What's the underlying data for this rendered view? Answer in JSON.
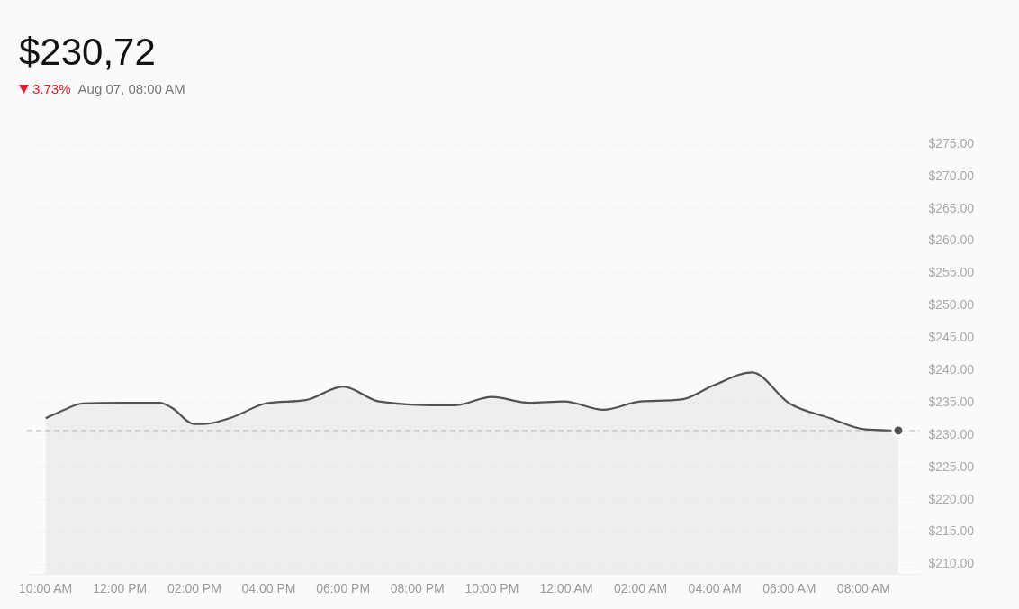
{
  "chart_data": {
    "type": "area",
    "title": "$230,72",
    "subtitle": "3.73%",
    "annotations": [
      "Aug 07, 08:00 AM"
    ],
    "xlim": [
      "--08-06T09:30",
      "--08-07T09:30"
    ],
    "xticks": [
      {
        "value": "--08-06T10:00",
        "label": "10:00 AM"
      },
      {
        "value": "--08-06T12:00",
        "label": "12:00 PM"
      },
      {
        "value": "--08-06T14:00",
        "label": "02:00 PM"
      },
      {
        "value": "--08-06T16:00",
        "label": "04:00 PM"
      },
      {
        "value": "--08-06T18:00",
        "label": "06:00 PM"
      },
      {
        "value": "--08-06T20:00",
        "label": "08:00 PM"
      },
      {
        "value": "--08-06T22:00",
        "label": "10:00 PM"
      },
      {
        "value": "--08-07T00:00",
        "label": "12:00 AM"
      },
      {
        "value": "--08-07T02:00",
        "label": "02:00 AM"
      },
      {
        "value": "--08-07T04:00",
        "label": "04:00 AM"
      },
      {
        "value": "--08-07T06:00",
        "label": "06:00 AM"
      },
      {
        "value": "--08-07T08:00",
        "label": "08:00 AM"
      }
    ],
    "ylim": [
      208.5,
      275
    ],
    "yticks": [
      {
        "value": 210,
        "label": "$210.00"
      },
      {
        "value": 215,
        "label": "$215.00"
      },
      {
        "value": 220,
        "label": "$220.00"
      },
      {
        "value": 225,
        "label": "$225.00"
      },
      {
        "value": 230,
        "label": "$230.00"
      },
      {
        "value": 235,
        "label": "$235.00"
      },
      {
        "value": 240,
        "label": "$240.00"
      },
      {
        "value": 245,
        "label": "$245.00"
      },
      {
        "value": 250,
        "label": "$250.00"
      },
      {
        "value": 255,
        "label": "$255.00"
      },
      {
        "value": 260,
        "label": "$260.00"
      },
      {
        "value": 265,
        "label": "$265.00"
      },
      {
        "value": 270,
        "label": "$270.00"
      },
      {
        "value": 275,
        "label": "$275.00"
      }
    ],
    "grid": "y",
    "legend": false,
    "ref_lines": [
      {
        "axis": "y",
        "value": 230.7,
        "color": "#bbbbbb",
        "line_style": "dashed"
      }
    ],
    "series": [
      {
        "color": "#555150",
        "x": [
          "--08-06T10:00",
          "--08-06T10:30",
          "--08-06T11:00",
          "--08-06T12:03",
          "--08-06T13:04",
          "--08-06T13:24",
          "--08-06T14:00",
          "--08-06T14:15",
          "--08-06T15:00",
          "--08-06T15:56",
          "--08-06T17:00",
          "--08-06T18:00",
          "--08-06T18:58",
          "--08-06T21:00",
          "--08-06T22:00",
          "--08-06T23:00",
          "--08-06T23:57",
          "--08-07T01:00",
          "--08-07T02:00",
          "--08-07T03:06",
          "--08-07T03:58",
          "--08-07T05:00",
          "--08-07T06:00",
          "--08-07T07:06",
          "--08-07T08:00",
          "--08-07T08:56"
        ],
        "values": [
          232.6,
          233.9,
          234.9,
          235.0,
          235.0,
          234.2,
          231.7,
          231.7,
          232.7,
          234.9,
          235.4,
          237.5,
          235.2,
          234.6,
          235.9,
          235.0,
          235.2,
          233.9,
          235.2,
          235.5,
          237.7,
          239.7,
          234.9,
          232.6,
          230.9,
          230.7
        ]
      },
      {
        "type": "scatter",
        "color": "#555150",
        "x": [
          "--08-07T08:56"
        ],
        "values": [
          230.7
        ]
      }
    ]
  }
}
